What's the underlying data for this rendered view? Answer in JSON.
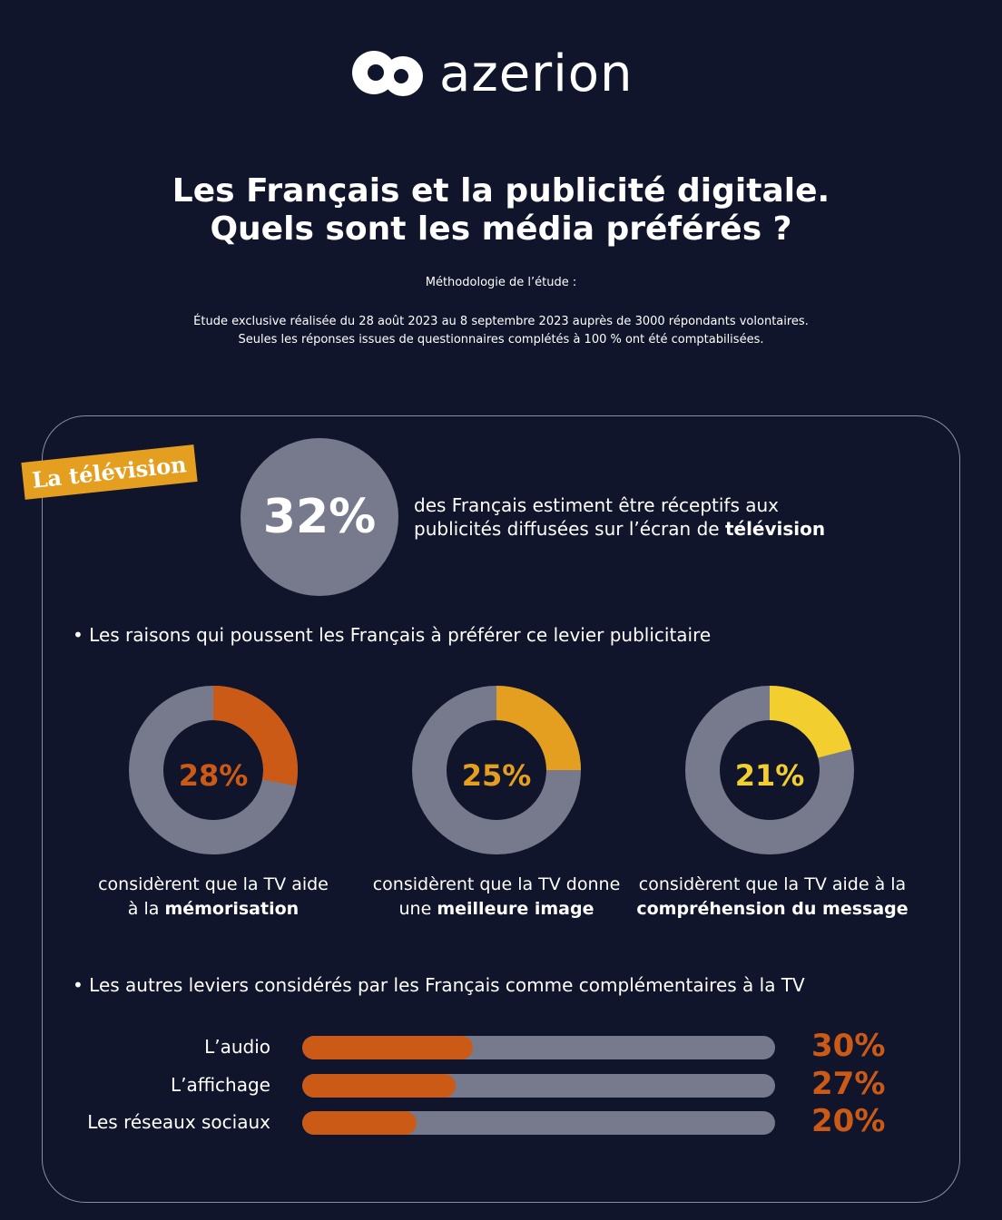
{
  "brand": {
    "name": "azerion"
  },
  "header": {
    "title_line1": "Les Français et la publicité digitale.",
    "title_line2": "Quels sont les média préférés ?",
    "methodology_label": "Méthodologie de l’étude :",
    "methodology_line1": "Étude exclusive réalisée du 28 août 2023 au 8 septembre 2023 auprès de 3000 répondants volontaires.",
    "methodology_line2": "Seules les réponses issues de questionnaires complétés à 100 % ont été comptabilisées."
  },
  "section": {
    "badge": "La télévision",
    "headline_value": "32%",
    "intro_line1": "des Français estiment être réceptifs aux",
    "intro_line2_pre": "publicités diffusées sur l’écran de ",
    "intro_line2_bold": "télévision",
    "bullet1": "• Les raisons qui poussent les Français à préférer ce levier publicitaire",
    "bullet2": "• Les autres leviers considérés par les Français comme complémentaires à la TV"
  },
  "colors": {
    "bg": "#11152b",
    "gray": "#767a8c",
    "orange": "#cc5a17",
    "amber": "#e59f20",
    "yellow": "#f2cf2e"
  },
  "chart_data": [
    {
      "type": "pie",
      "title": "Les raisons qui poussent les Français à préférer ce levier publicitaire",
      "items": [
        {
          "value": 28,
          "label": "28%",
          "color": "#cc5a17",
          "caption_pre": "considèrent que la TV aide",
          "caption_line2_pre": "à la ",
          "caption_bold": "mémorisation"
        },
        {
          "value": 25,
          "label": "25%",
          "color": "#e59f20",
          "caption_pre": "considèrent que la TV donne",
          "caption_line2_pre": "une ",
          "caption_bold": "meilleure image"
        },
        {
          "value": 21,
          "label": "21%",
          "color": "#f2cf2e",
          "caption_pre": "considèrent que la TV aide à la",
          "caption_line2_pre": "",
          "caption_bold": "compréhension du message"
        }
      ]
    },
    {
      "type": "bar",
      "title": "Les autres leviers considérés par les Français comme complémentaires à la TV",
      "categories": [
        "L’audio",
        "L’affichage",
        "Les réseaux sociaux"
      ],
      "values": [
        30,
        27,
        20
      ],
      "labels": [
        "30%",
        "27%",
        "20%"
      ],
      "xlim": [
        0,
        100
      ]
    }
  ]
}
